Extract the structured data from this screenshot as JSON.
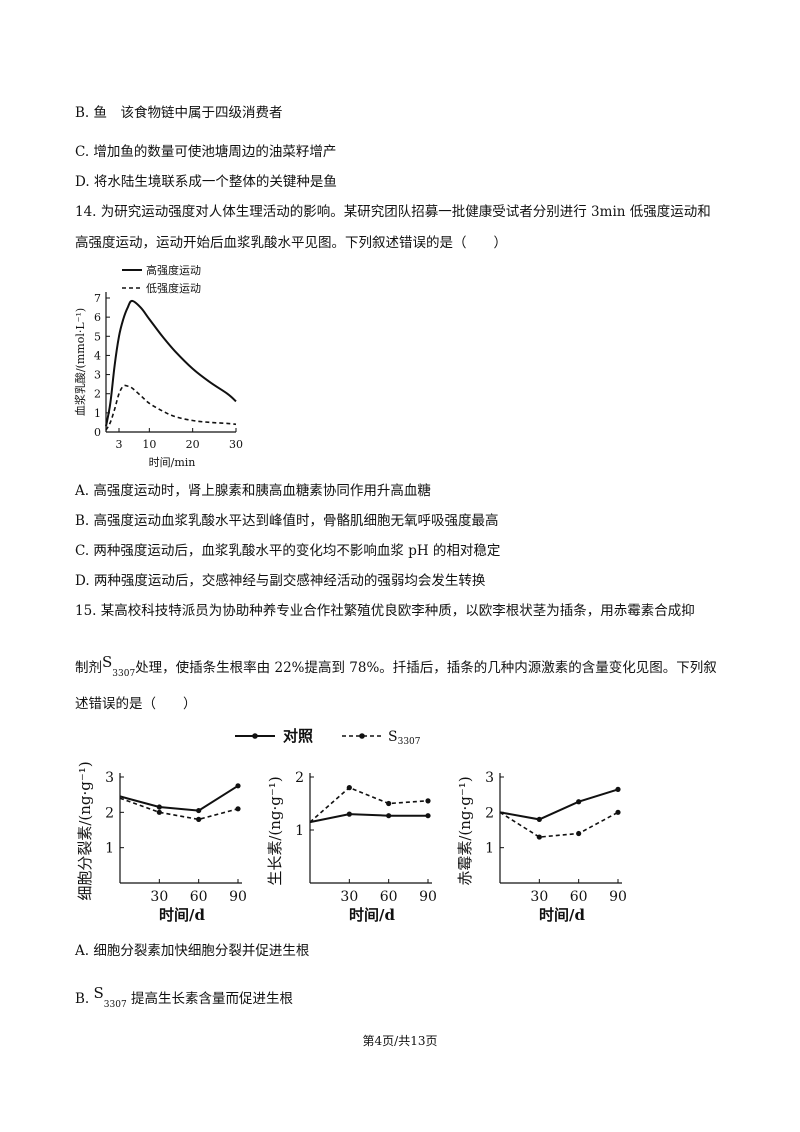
{
  "lines": {
    "q13_b": "B. 鱼　该食物链中属于四级消费者",
    "q13_c": "C. 增加鱼的数量可使池塘周边的油菜籽增产",
    "q13_d": "D. 将水陆生境联系成一个整体的关键种是鱼",
    "q14_stem1": "14. 为研究运动强度对人体生理活动的影响。某研究团队招募一批健康受试者分别进行 3min 低强度运动和",
    "q14_stem2": "高强度运动，运动开始后血浆乳酸水平见图。下列叙述错误的是（　　）",
    "q14_a": "A. 高强度运动时，肾上腺素和胰高血糖素协同作用升高血糖",
    "q14_b": "B. 高强度运动血浆乳酸水平达到峰值时，骨骼肌细胞无氧呼吸强度最高",
    "q14_c": "C. 两种强度运动后，血浆乳酸水平的变化均不影响血浆 pH 的相对稳定",
    "q14_d": "D. 两种强度运动后，交感神经与副交感神经活动的强弱均会发生转换",
    "q15_stem1": "15. 某高校科技特派员为协助种养专业合作社繁殖优良欧李种质，以欧李根状茎为插条，用赤霉素合成抑",
    "q15_stem2_pre": "制剂",
    "q15_stem2_S": "S",
    "q15_stem2_sub": "3307",
    "q15_stem2_post": "处理，使插条生根率由 22%提高到 78%。扦插后，插条的几种内源激素的含量变化见图。下列叙",
    "q15_stem3": "述错误的是（　　）",
    "q15_a": "A. 细胞分裂素加快细胞分裂并促进生根",
    "q15_b_pre": "B.",
    "q15_b_S": "S",
    "q15_b_sub": "3307",
    "q15_b_post": "提高生长素含量而促进生根"
  },
  "footer": "第4页/共13页",
  "chart14": {
    "legend": [
      "高强度运动",
      "低强度运动"
    ],
    "ylabel": "血浆乳酸/(mmol·L⁻¹)",
    "xlabel": "时间/min",
    "yticks": [
      "0",
      "1",
      "2",
      "3",
      "4",
      "5",
      "6",
      "7"
    ],
    "xticks": [
      "3",
      "10",
      "20",
      "30"
    ]
  },
  "chart15": {
    "legend_control": "对照",
    "legend_s": "S",
    "legend_s_sub": "3307",
    "xlabel": "时间/d",
    "xticks": [
      "30",
      "60",
      "90"
    ],
    "panel1_ylabel": "细胞分裂素/(ng·g⁻¹)",
    "panel1_yticks": [
      "1",
      "2",
      "3"
    ],
    "panel2_ylabel": "生长素/(ng·g⁻¹)",
    "panel2_yticks": [
      "1",
      "2"
    ],
    "panel3_ylabel": "赤霉素/(ng·g⁻¹)",
    "panel3_yticks": [
      "1",
      "2",
      "3"
    ]
  },
  "chart_data": [
    {
      "type": "line",
      "xlabel": "时间/min",
      "ylabel": "血浆乳酸/(mmol·L⁻¹)",
      "ylim": [
        0,
        7
      ],
      "xlim": [
        0,
        30
      ],
      "series": [
        {
          "name": "高强度运动",
          "style": "solid",
          "x": [
            0,
            1,
            2,
            3,
            4,
            5,
            6,
            8,
            10,
            13,
            16,
            20,
            24,
            28,
            30
          ],
          "y": [
            0.3,
            1.5,
            3.5,
            5.0,
            5.9,
            6.5,
            6.85,
            6.5,
            5.9,
            5.0,
            4.2,
            3.3,
            2.6,
            2.0,
            1.6
          ]
        },
        {
          "name": "低强度运动",
          "style": "dashed",
          "x": [
            0,
            1,
            2,
            3,
            4,
            5,
            6,
            8,
            10,
            13,
            16,
            20,
            24,
            28,
            30
          ],
          "y": [
            0.1,
            0.5,
            1.2,
            2.0,
            2.4,
            2.4,
            2.3,
            1.9,
            1.5,
            1.1,
            0.8,
            0.6,
            0.5,
            0.45,
            0.4
          ]
        }
      ]
    },
    {
      "type": "line",
      "ylabel": "细胞分裂素/(ng·g⁻¹)",
      "xlabel": "时间/d",
      "ylim": [
        0,
        3
      ],
      "x": [
        0,
        30,
        60,
        90
      ],
      "series": [
        {
          "name": "对照",
          "values": [
            2.45,
            2.15,
            2.05,
            2.75
          ]
        },
        {
          "name": "S3307",
          "values": [
            2.4,
            2.0,
            1.8,
            2.1
          ]
        }
      ]
    },
    {
      "type": "line",
      "ylabel": "生长素/(ng·g⁻¹)",
      "xlabel": "时间/d",
      "ylim": [
        0,
        2
      ],
      "x": [
        0,
        30,
        60,
        90
      ],
      "series": [
        {
          "name": "对照",
          "values": [
            1.15,
            1.3,
            1.27,
            1.27
          ]
        },
        {
          "name": "S3307",
          "values": [
            1.15,
            1.8,
            1.5,
            1.55
          ]
        }
      ]
    },
    {
      "type": "line",
      "ylabel": "赤霉素/(ng·g⁻¹)",
      "xlabel": "时间/d",
      "ylim": [
        0,
        3
      ],
      "x": [
        0,
        30,
        60,
        90
      ],
      "series": [
        {
          "name": "对照",
          "values": [
            2.0,
            1.8,
            2.3,
            2.65
          ]
        },
        {
          "name": "S3307",
          "values": [
            2.0,
            1.3,
            1.4,
            2.0
          ]
        }
      ]
    }
  ]
}
